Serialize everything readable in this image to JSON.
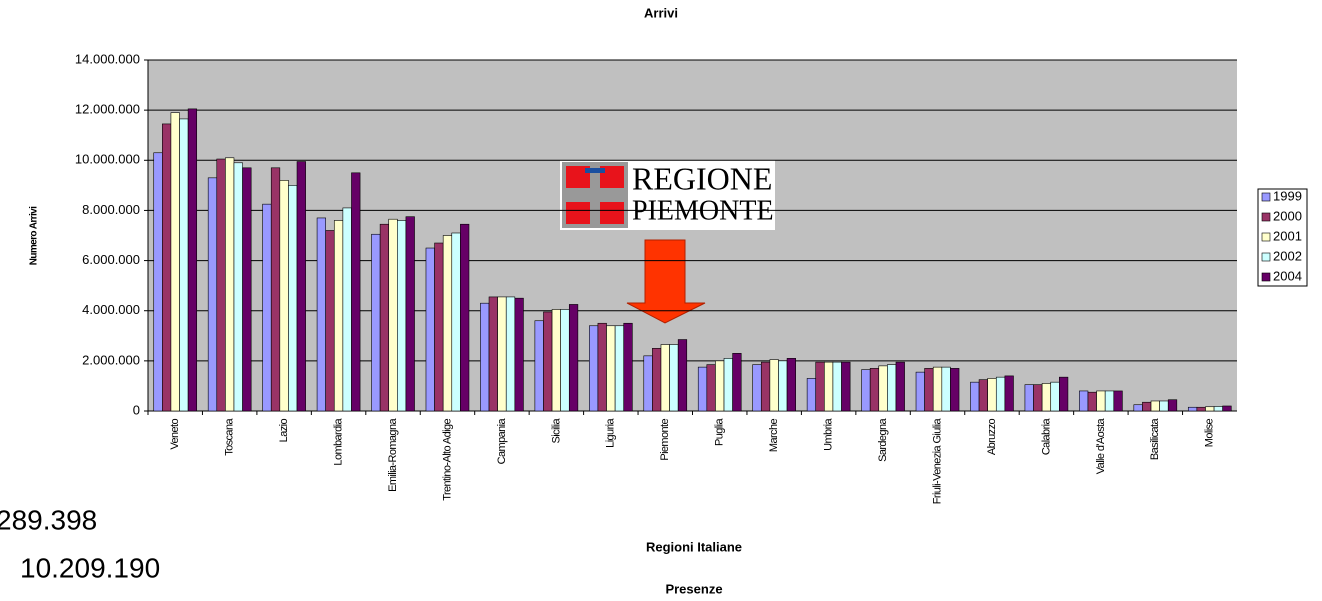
{
  "chart_data": {
    "type": "bar",
    "title": "Arrivi",
    "y_label": "Numero Arrivi",
    "x_label": "Regioni Italiane",
    "categories": [
      "Veneto",
      "Toscana",
      "Lazio",
      "Lombardia",
      "Emilia-Romagna",
      "Trentino-Alto Adige",
      "Campania",
      "Sicilia",
      "Liguria",
      "Piemonte",
      "Puglia",
      "Marche",
      "Umbria",
      "Sardegna",
      "Friuli-Venezia Giulia",
      "Abruzzo",
      "Calabria",
      "Valle d'Aosta",
      "Basilicata",
      "Molise"
    ],
    "series": [
      {
        "name": "1999",
        "color": "#9999ff",
        "values": [
          10300000,
          9300000,
          8250000,
          7700000,
          7050000,
          6500000,
          4300000,
          3600000,
          3400000,
          2200000,
          1750000,
          1850000,
          1300000,
          1650000,
          1550000,
          1150000,
          1050000,
          800000,
          250000,
          150000
        ]
      },
      {
        "name": "2000",
        "color": "#993366",
        "values": [
          11450000,
          10050000,
          9700000,
          7200000,
          7450000,
          6700000,
          4550000,
          3950000,
          3500000,
          2500000,
          1850000,
          1950000,
          1950000,
          1700000,
          1700000,
          1250000,
          1050000,
          750000,
          350000,
          150000
        ]
      },
      {
        "name": "2001",
        "color": "#ffffcc",
        "values": [
          11900000,
          10100000,
          9200000,
          7600000,
          7650000,
          7000000,
          4550000,
          4050000,
          3400000,
          2650000,
          2000000,
          2050000,
          1950000,
          1800000,
          1750000,
          1300000,
          1100000,
          800000,
          400000,
          170000
        ]
      },
      {
        "name": "2002",
        "color": "#ccffff",
        "values": [
          11650000,
          9900000,
          9000000,
          8100000,
          7600000,
          7100000,
          4550000,
          4050000,
          3400000,
          2650000,
          2100000,
          2000000,
          1950000,
          1850000,
          1750000,
          1350000,
          1150000,
          800000,
          400000,
          180000
        ]
      },
      {
        "name": "2004",
        "color": "#660066",
        "values": [
          12050000,
          9700000,
          9950000,
          9500000,
          7750000,
          7450000,
          4500000,
          4250000,
          3500000,
          2850000,
          2300000,
          2100000,
          1950000,
          1950000,
          1700000,
          1400000,
          1350000,
          800000,
          450000,
          200000
        ]
      }
    ],
    "ylim": [
      0,
      14000000
    ],
    "yticks": [
      0,
      {
        "value": 2000000,
        "label": "2.000.000"
      },
      {
        "value": 4000000,
        "label": "4.000.000"
      },
      {
        "value": 6000000,
        "label": "6.000.000"
      },
      {
        "value": 8000000,
        "label": "8.000.000"
      },
      {
        "value": 10000000,
        "label": "10.000.000"
      },
      {
        "value": 12000000,
        "label": "12.000.000"
      },
      {
        "value": 14000000,
        "label": "14.000.000"
      }
    ],
    "grid": true,
    "legend": "right",
    "logo": [
      "REGIONE",
      "PIEMONTE"
    ],
    "annotations": [
      "289.398",
      "10.209.190",
      "Presenze"
    ]
  }
}
